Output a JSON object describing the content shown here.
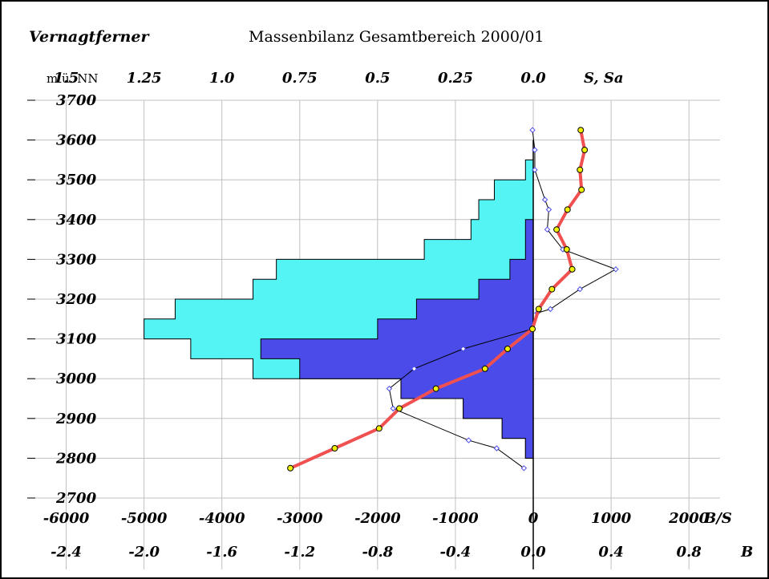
{
  "chart_data": {
    "type": "area",
    "glacier": "Vernagtferner",
    "title": "Massenbilanz Gesamtbereich 2000/01",
    "y_axis_label": "m ü. NN",
    "ylim": [
      2700,
      3700
    ],
    "y_ticks": [
      "3700",
      "3600",
      "3500",
      "3400",
      "3300",
      "3200",
      "3100",
      "3000",
      "2900",
      "2800",
      "2700"
    ],
    "top_axis": {
      "label": "S, Sa",
      "ticks": [
        "1.5",
        "1.25",
        "1.0",
        "0.75",
        "0.5",
        "0.25",
        "0.0"
      ]
    },
    "bottom_axis_1": {
      "label": "B/S",
      "xlim": [
        -6500,
        2400
      ],
      "ticks": [
        "-6000",
        "-5000",
        "-4000",
        "-3000",
        "-2000",
        "-1000",
        "0",
        "1000",
        "2000"
      ]
    },
    "bottom_axis_2": {
      "label": "B",
      "ticks": [
        "-2.4",
        "-2.0",
        "-1.6",
        "-1.2",
        "-0.8",
        "-0.4",
        "0.0",
        "0.4",
        "0.8"
      ]
    },
    "colors": {
      "area_total": "#55f4f4",
      "area_part": "#4b4bea",
      "specific_balance_line": "#f05050",
      "specific_balance_markers": "#f0f000",
      "thin_line": "#000000",
      "thin_markers": "#4b4bea",
      "grid": "#c0c0c0"
    },
    "series": [
      {
        "role": "total area distribution (cyan step)",
        "unit": "km²",
        "bands": [
          {
            "y0": 2750,
            "y1": 2800,
            "x": 0
          },
          {
            "y0": 2800,
            "x": 0.025,
            "y1": 2850
          },
          {
            "y0": 2850,
            "y1": 2900,
            "x": 0.1
          },
          {
            "y0": 2900,
            "y1": 2950,
            "x": 0.225
          },
          {
            "y0": 2950,
            "y1": 3000,
            "x": 0.425
          },
          {
            "y0": 3000,
            "y1": 3050,
            "x": 0.9
          },
          {
            "y0": 3050,
            "y1": 3100,
            "x": 1.1
          },
          {
            "y0": 3100,
            "y1": 3150,
            "x": 1.25
          },
          {
            "y0": 3150,
            "y1": 3200,
            "x": 1.15
          },
          {
            "y0": 3200,
            "y1": 3250,
            "x": 0.9
          },
          {
            "y0": 3250,
            "y1": 3300,
            "x": 0.825
          },
          {
            "y0": 3300,
            "y1": 3350,
            "x": 0.35
          },
          {
            "y0": 3350,
            "y1": 3400,
            "x": 0.2
          },
          {
            "y0": 3400,
            "y1": 3450,
            "x": 0.175
          },
          {
            "y0": 3450,
            "y1": 3500,
            "x": 0.125
          },
          {
            "y0": 3500,
            "y1": 3550,
            "x": 0.025
          },
          {
            "y0": 3550,
            "y1": 3600,
            "x": 0.0
          }
        ]
      },
      {
        "role": "partial area distribution (blue step)",
        "unit": "km²",
        "bands": [
          {
            "y0": 2750,
            "y1": 2800,
            "x": 0.0
          },
          {
            "y0": 2800,
            "y1": 2850,
            "x": 0.025
          },
          {
            "y0": 2850,
            "y1": 2900,
            "x": 0.1
          },
          {
            "y0": 2900,
            "y1": 2950,
            "x": 0.225
          },
          {
            "y0": 2950,
            "y1": 3000,
            "x": 0.425
          },
          {
            "y0": 3000,
            "y1": 3050,
            "x": 0.75
          },
          {
            "y0": 3050,
            "y1": 3100,
            "x": 0.875
          },
          {
            "y0": 3100,
            "y1": 3150,
            "x": 0.5
          },
          {
            "y0": 3150,
            "y1": 3200,
            "x": 0.375
          },
          {
            "y0": 3200,
            "y1": 3250,
            "x": 0.175
          },
          {
            "y0": 3250,
            "y1": 3300,
            "x": 0.075
          },
          {
            "y0": 3300,
            "y1": 3350,
            "x": 0.025
          },
          {
            "y0": 3350,
            "y1": 3400,
            "x": 0.025
          }
        ]
      },
      {
        "role": "specific mass balance B (red line, yellow markers)",
        "unit": "kg/m²",
        "points": [
          {
            "x": -3120,
            "y": 2775
          },
          {
            "x": -2550,
            "y": 2825
          },
          {
            "x": -1980,
            "y": 2875
          },
          {
            "x": -1720,
            "y": 2925
          },
          {
            "x": -1250,
            "y": 2975
          },
          {
            "x": -620,
            "y": 3025
          },
          {
            "x": -330,
            "y": 3075
          },
          {
            "x": -10,
            "y": 3125
          },
          {
            "x": 70,
            "y": 3175
          },
          {
            "x": 240,
            "y": 3225
          },
          {
            "x": 500,
            "y": 3275
          },
          {
            "x": 430,
            "y": 3325
          },
          {
            "x": 300,
            "y": 3375
          },
          {
            "x": 440,
            "y": 3425
          },
          {
            "x": 620,
            "y": 3475
          },
          {
            "x": 600,
            "y": 3525
          },
          {
            "x": 660,
            "y": 3575
          },
          {
            "x": 610,
            "y": 3625
          }
        ]
      },
      {
        "role": "mass balance per band (thin black line, blue markers)",
        "unit": "kg/m² · km²",
        "points": [
          {
            "x": -120,
            "y": 2775
          },
          {
            "x": -470,
            "y": 2825
          },
          {
            "x": -830,
            "y": 2845
          },
          {
            "x": -1800,
            "y": 2925
          },
          {
            "x": -1850,
            "y": 2975
          },
          {
            "x": -1530,
            "y": 3025
          },
          {
            "x": -900,
            "y": 3075
          },
          {
            "x": -10,
            "y": 3125
          },
          {
            "x": 50,
            "y": 3165
          },
          {
            "x": 220,
            "y": 3175
          },
          {
            "x": 600,
            "y": 3225
          },
          {
            "x": 1060,
            "y": 3275
          },
          {
            "x": 380,
            "y": 3325
          },
          {
            "x": 180,
            "y": 3375
          },
          {
            "x": 200,
            "y": 3425
          },
          {
            "x": 150,
            "y": 3450
          },
          {
            "x": 20,
            "y": 3525
          },
          {
            "x": 20,
            "y": 3575
          },
          {
            "x": -10,
            "y": 3625
          }
        ]
      }
    ]
  }
}
